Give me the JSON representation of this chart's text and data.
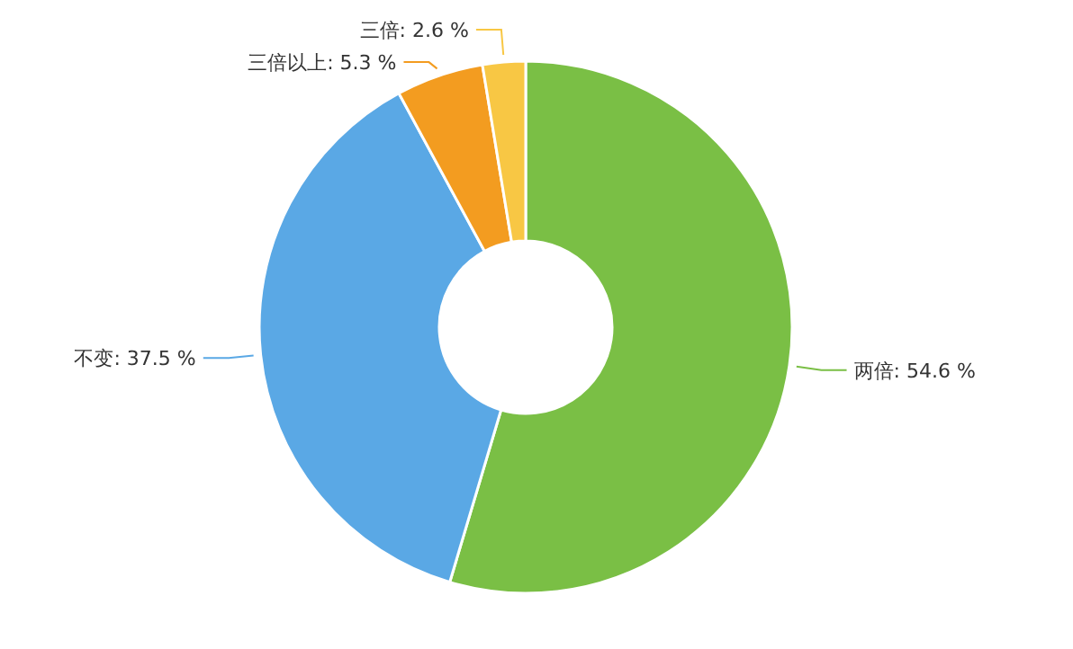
{
  "chart_data": {
    "type": "donut",
    "categories": [
      "两倍",
      "不变",
      "三倍以上",
      "三倍"
    ],
    "values": [
      54.6,
      37.5,
      5.3,
      2.6
    ],
    "colors": [
      "#7abf45",
      "#5aa8e5",
      "#f39c20",
      "#f8c744"
    ],
    "value_labels": [
      "54.6 %",
      "37.5 %",
      "5.3 %",
      "2.6 %"
    ]
  }
}
